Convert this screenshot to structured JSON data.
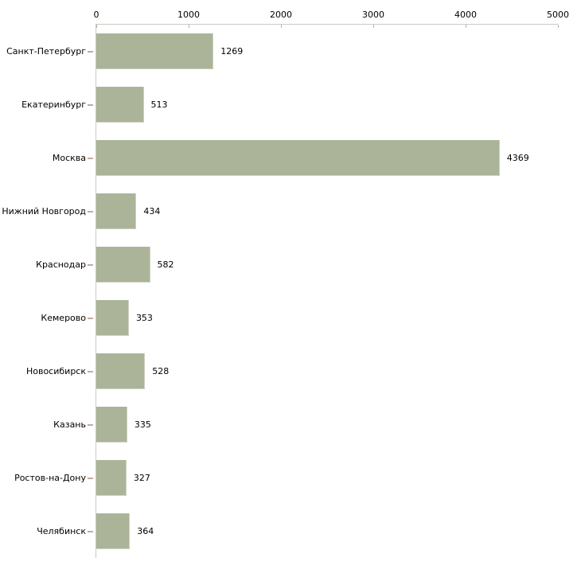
{
  "chart_data": {
    "type": "bar",
    "orientation": "horizontal",
    "title": "",
    "xlabel": "",
    "ylabel": "",
    "categories": [
      "Санкт-Петербург",
      "Екатеринбург",
      "Москва",
      "Нижний Новгород",
      "Краснодар",
      "Кемерово",
      "Новосибирск",
      "Казань",
      "Ростов-на-Дону",
      "Челябинск"
    ],
    "values": [
      1269,
      513,
      4369,
      434,
      582,
      353,
      528,
      335,
      327,
      364
    ],
    "value_labels": [
      "1269",
      "513",
      "4369",
      "434",
      "582",
      "353",
      "528",
      "335",
      "327",
      "364"
    ],
    "xlim": [
      0,
      5000
    ],
    "x_ticks": [
      0,
      1000,
      2000,
      3000,
      4000,
      5000
    ],
    "x_tick_labels": [
      "0",
      "1000",
      "2000",
      "3000",
      "4000",
      "5000"
    ],
    "grid": false,
    "legend": "none",
    "axis_position": "top",
    "colors": {
      "bar_fill": "#abb499",
      "bar_edge": "#cdd0bd",
      "axis_line": "#c9c9c4",
      "x_tick": "#b4b79a",
      "y_tick": "#c4ab9d",
      "text": "#000000",
      "background": "#ffffff"
    }
  }
}
